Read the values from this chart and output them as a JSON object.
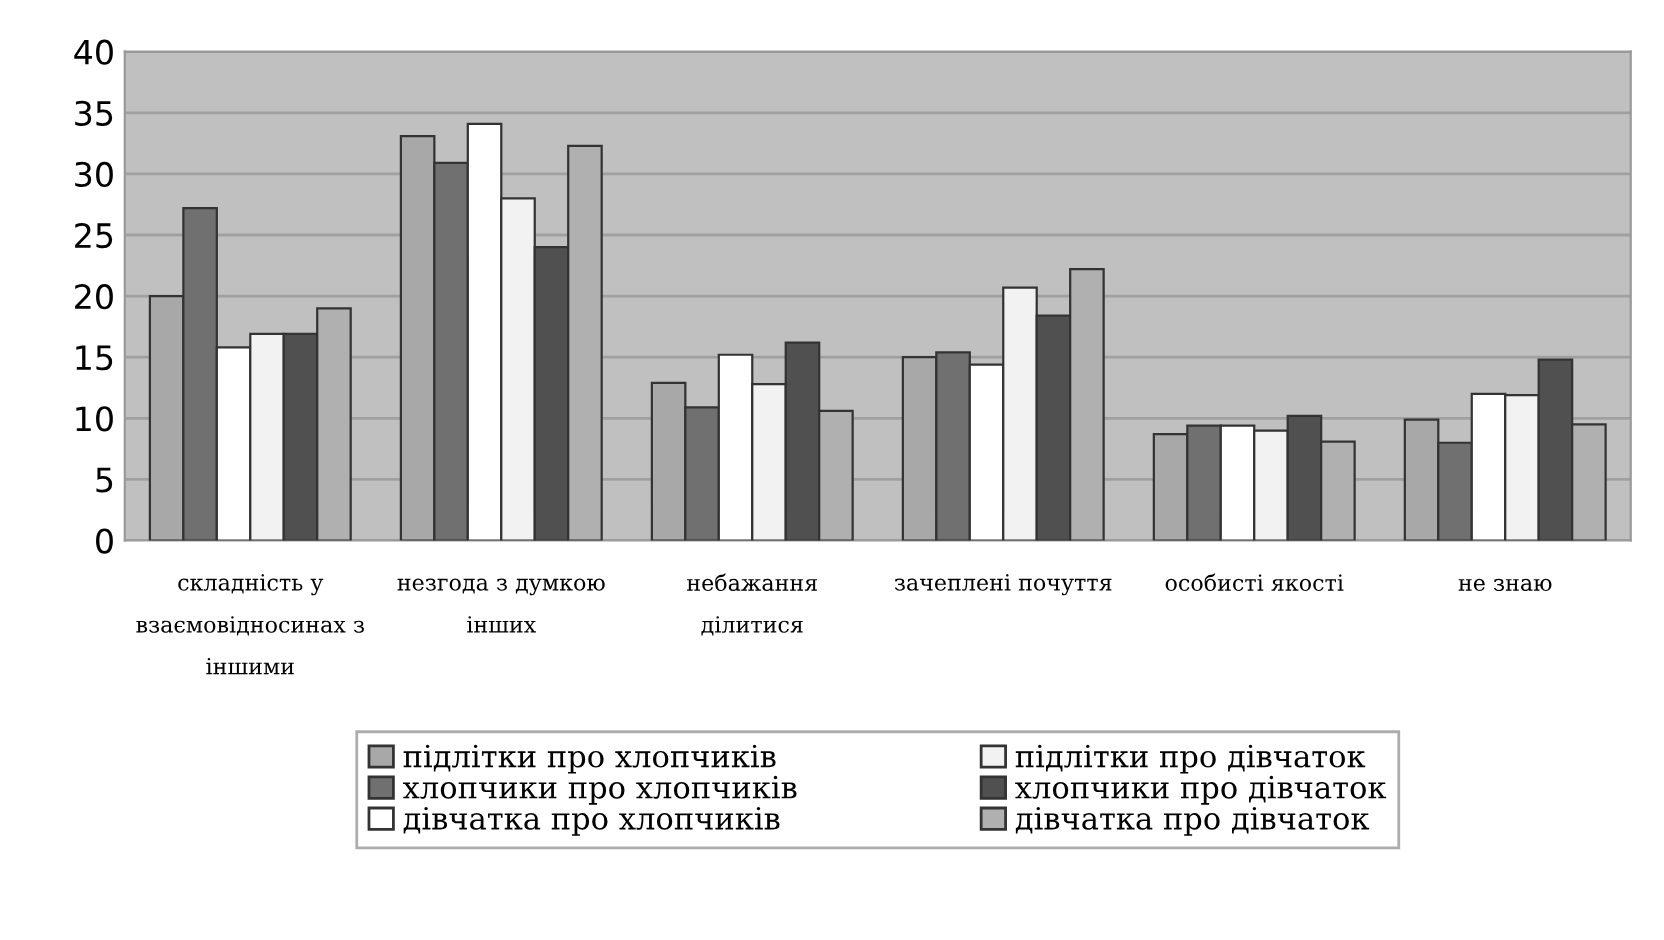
{
  "chart_data": {
    "type": "bar",
    "categories": [
      "складність у\nвзаємовідносинах з\nіншими",
      "незгода з думкою\nінших",
      "небажання\nділитися",
      "зачеплені почуття",
      "особисті якості",
      "не знаю"
    ],
    "series": [
      {
        "name": "підлітки про хлопчиків",
        "color": "#a8a8a8",
        "values": [
          20,
          33.1,
          12.9,
          15,
          8.7,
          9.9
        ]
      },
      {
        "name": "хлопчики про хлопчиків",
        "color": "#707070",
        "values": [
          27.2,
          30.9,
          10.9,
          15.4,
          9.4,
          8
        ]
      },
      {
        "name": "дівчатка про хлопчиків",
        "color": "#ffffff",
        "values": [
          15.8,
          34.1,
          15.2,
          14.4,
          9.4,
          12
        ]
      },
      {
        "name": "підлітки про дівчаток",
        "color": "#f2f2f2",
        "values": [
          16.9,
          28,
          12.8,
          20.7,
          9,
          11.9
        ]
      },
      {
        "name": "хлопчики про дівчаток",
        "color": "#505050",
        "values": [
          16.9,
          24,
          16.2,
          18.4,
          10.2,
          14.8
        ]
      },
      {
        "name": "дівчатка про дівчаток",
        "color": "#b0b0b0",
        "values": [
          19,
          32.3,
          10.6,
          22.2,
          8.1,
          9.5
        ]
      }
    ],
    "ylim": [
      0,
      40
    ],
    "yticks": [
      0,
      5,
      10,
      15,
      20,
      25,
      30,
      35,
      40
    ],
    "grid": "y",
    "legend": "bottom"
  }
}
